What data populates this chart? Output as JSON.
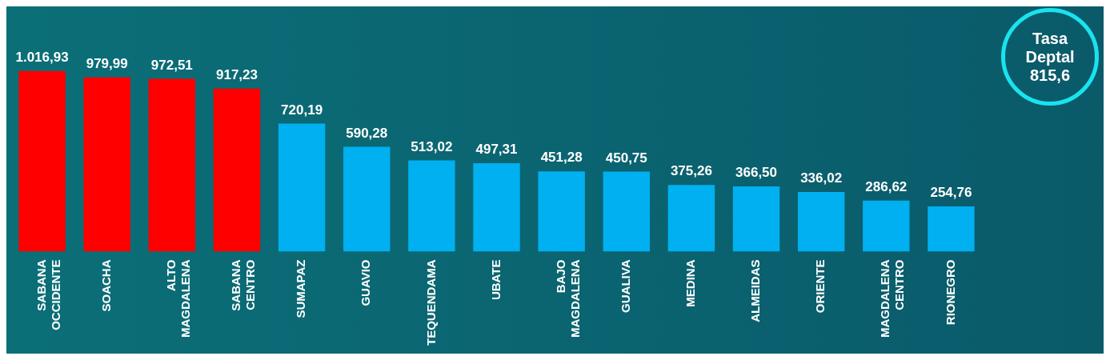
{
  "chart_data": {
    "type": "bar",
    "categories": [
      "SABANA OCCIDENTE",
      "SOACHA",
      "ALTO MAGDALENA",
      "SABANA CENTRO",
      "SUMAPAZ",
      "GUAVIO",
      "TEQUENDAMA",
      "UBATE",
      "BAJO MAGDALENA",
      "GUALIVA",
      "MEDINA",
      "ALMEIDAS",
      "ORIENTE",
      "MAGDALENA CENTRO",
      "RIONEGRO"
    ],
    "values": [
      1016.93,
      979.99,
      972.51,
      917.23,
      720.19,
      590.28,
      513.02,
      497.31,
      451.28,
      450.75,
      375.26,
      366.5,
      336.02,
      286.62,
      254.76
    ],
    "value_labels": [
      "1.016,93",
      "979,99",
      "972,51",
      "917,23",
      "720,19",
      "590,28",
      "513,02",
      "497,31",
      "451,28",
      "450,75",
      "375,26",
      "366,50",
      "336,02",
      "286,62",
      "254,76"
    ],
    "colors": [
      "#ff0000",
      "#ff0000",
      "#ff0000",
      "#ff0000",
      "#00b0f0",
      "#00b0f0",
      "#00b0f0",
      "#00b0f0",
      "#00b0f0",
      "#00b0f0",
      "#00b0f0",
      "#00b0f0",
      "#00b0f0",
      "#00b0f0",
      "#00b0f0"
    ],
    "annotations": [
      "Tasa Deptal 815,6"
    ],
    "grid": false,
    "legend": false
  }
}
